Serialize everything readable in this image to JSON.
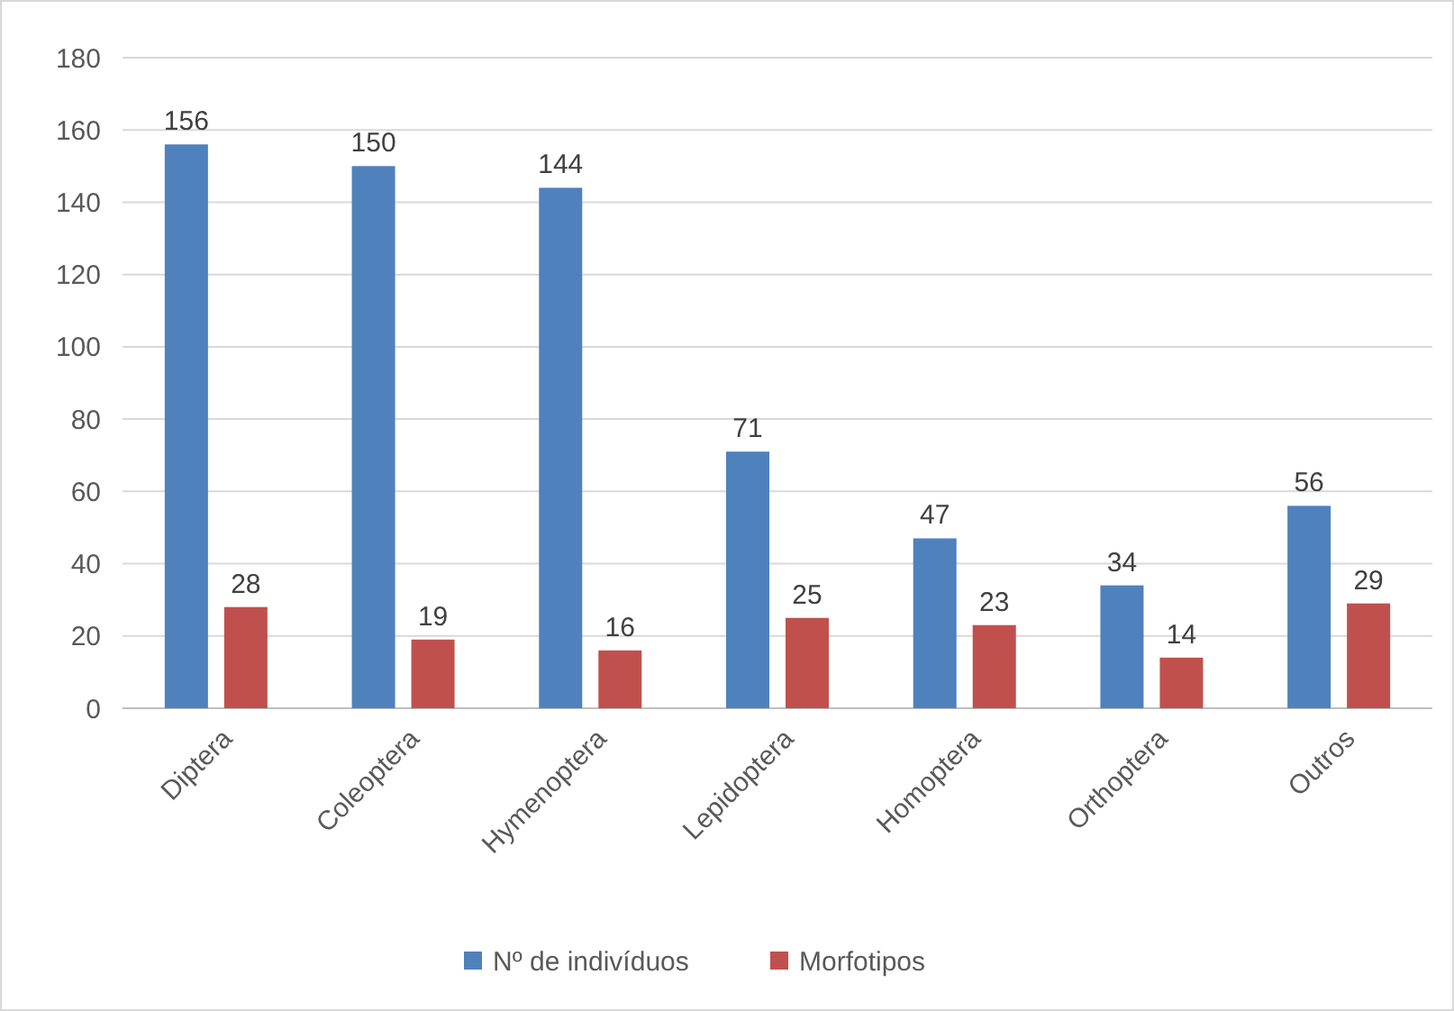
{
  "chart_data": {
    "type": "bar",
    "categories": [
      "Diptera",
      "Coleoptera",
      "Hymenoptera",
      "Lepidoptera",
      "Homoptera",
      "Orthoptera",
      "Outros"
    ],
    "series": [
      {
        "name": "Nº de indivíduos",
        "color": "#4f81bd",
        "values": [
          156,
          150,
          144,
          71,
          47,
          34,
          56
        ]
      },
      {
        "name": "Morfotipos",
        "color": "#c0504d",
        "values": [
          28,
          19,
          16,
          25,
          23,
          14,
          29
        ]
      }
    ],
    "ylim": [
      0,
      180
    ],
    "yticks": [
      0,
      20,
      40,
      60,
      80,
      100,
      120,
      140,
      160,
      180
    ],
    "grid": "y",
    "legend": "bottom",
    "data_labels": true
  }
}
